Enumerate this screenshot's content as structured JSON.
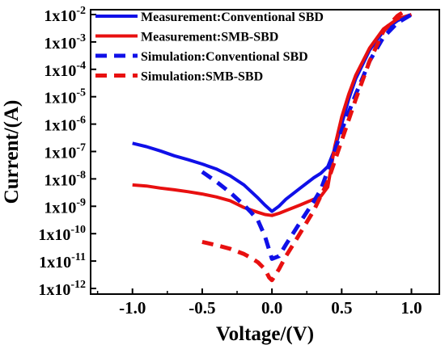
{
  "chart_data": {
    "type": "line",
    "title": "",
    "xlabel": "Voltage/(V)",
    "ylabel": "Current/(A)",
    "xlim": [
      -1.3,
      1.2
    ],
    "ylim_exponent": [
      -12,
      -2
    ],
    "y_scale": "log",
    "grid": false,
    "legend_position": "top-right",
    "x_ticks": [
      {
        "value": -1.0,
        "label": "-1.0"
      },
      {
        "value": -0.5,
        "label": "-0.5"
      },
      {
        "value": 0.0,
        "label": "0.0"
      },
      {
        "value": 0.5,
        "label": "0.5"
      },
      {
        "value": 1.0,
        "label": "1.0"
      }
    ],
    "y_ticks": [
      {
        "exp": -2,
        "label": "1x10",
        "sup": "-2"
      },
      {
        "exp": -3,
        "label": "1x10",
        "sup": "-3"
      },
      {
        "exp": -4,
        "label": "1x10",
        "sup": "-4"
      },
      {
        "exp": -5,
        "label": "1x10",
        "sup": "-5"
      },
      {
        "exp": -6,
        "label": "1x10",
        "sup": "-6"
      },
      {
        "exp": -7,
        "label": "1x10",
        "sup": "-7"
      },
      {
        "exp": -8,
        "label": "1x10",
        "sup": "-8"
      },
      {
        "exp": -9,
        "label": "1x10",
        "sup": "-9"
      },
      {
        "exp": -10,
        "label": "1x10",
        "sup": "-10"
      },
      {
        "exp": -11,
        "label": "1x10",
        "sup": "-11"
      },
      {
        "exp": -12,
        "label": "1x10",
        "sup": "-12"
      }
    ],
    "series": [
      {
        "name": "Measurement:Conventional SBD",
        "color": "#1010e8",
        "style": "solid",
        "x": [
          -1.0,
          -0.9,
          -0.8,
          -0.7,
          -0.6,
          -0.5,
          -0.4,
          -0.3,
          -0.2,
          -0.1,
          -0.05,
          0.0,
          0.05,
          0.1,
          0.2,
          0.3,
          0.35,
          0.4,
          0.45,
          0.5,
          0.55,
          0.6,
          0.7,
          0.8,
          0.9,
          1.0
        ],
        "y": [
          2e-07,
          1.5e-07,
          1.05e-07,
          7e-08,
          5e-08,
          3.5e-08,
          2.3e-08,
          1.3e-08,
          6e-09,
          2e-09,
          1.1e-09,
          6.5e-10,
          1e-09,
          1.8e-09,
          4.5e-09,
          1.1e-08,
          1.6e-08,
          2.8e-08,
          1.2e-07,
          1e-06,
          8e-06,
          4.5e-05,
          0.0005,
          0.0025,
          0.006,
          0.01
        ]
      },
      {
        "name": "Measurement:SMB-SBD",
        "color": "#e81010",
        "style": "solid",
        "x": [
          -1.0,
          -0.9,
          -0.8,
          -0.7,
          -0.6,
          -0.5,
          -0.4,
          -0.3,
          -0.2,
          -0.1,
          -0.05,
          0.0,
          0.05,
          0.1,
          0.2,
          0.3,
          0.35,
          0.4,
          0.45,
          0.5,
          0.55,
          0.6,
          0.7,
          0.8,
          0.9,
          1.0
        ],
        "y": [
          6e-09,
          5.5e-09,
          4.6e-09,
          4e-09,
          3.4e-09,
          2.8e-09,
          2.2e-09,
          1.6e-09,
          9e-10,
          6e-10,
          5e-10,
          4.6e-10,
          5.5e-10,
          7e-10,
          1.1e-09,
          1.8e-09,
          2.3e-09,
          5e-09,
          1.5e-07,
          1.8e-06,
          1.2e-05,
          6e-05,
          0.0006,
          0.003,
          0.007,
          0.01
        ]
      },
      {
        "name": "Simulation:Conventional SBD",
        "color": "#1010e8",
        "style": "dashed",
        "x": [
          -0.5,
          -0.4,
          -0.3,
          -0.2,
          -0.15,
          -0.1,
          -0.05,
          0.0,
          0.05,
          0.1,
          0.2,
          0.3,
          0.35,
          0.4,
          0.5,
          0.6,
          0.7,
          0.8,
          0.9,
          1.0
        ],
        "y": [
          1.8e-08,
          8e-09,
          3.2e-09,
          1.1e-09,
          6e-10,
          3e-10,
          8e-11,
          1.2e-11,
          1.5e-11,
          4e-11,
          2.5e-10,
          1.5e-09,
          4e-09,
          2e-08,
          6e-07,
          1.2e-05,
          0.0002,
          0.0015,
          0.005,
          0.01
        ]
      },
      {
        "name": "Simulation:SMB-SBD",
        "color": "#e81010",
        "style": "dashed",
        "x": [
          -0.5,
          -0.4,
          -0.3,
          -0.2,
          -0.15,
          -0.1,
          -0.05,
          -0.02,
          0.0,
          0.05,
          0.1,
          0.2,
          0.3,
          0.4,
          0.5,
          0.6,
          0.7,
          0.8,
          0.9,
          0.95
        ],
        "y": [
          5e-11,
          3.8e-11,
          2.8e-11,
          1.8e-11,
          1.3e-11,
          9e-12,
          5e-12,
          2.5e-12,
          2e-12,
          5e-12,
          1.5e-11,
          1e-10,
          7e-10,
          8e-09,
          2.5e-07,
          8e-06,
          0.0002,
          0.0025,
          0.009,
          0.013
        ]
      }
    ]
  }
}
